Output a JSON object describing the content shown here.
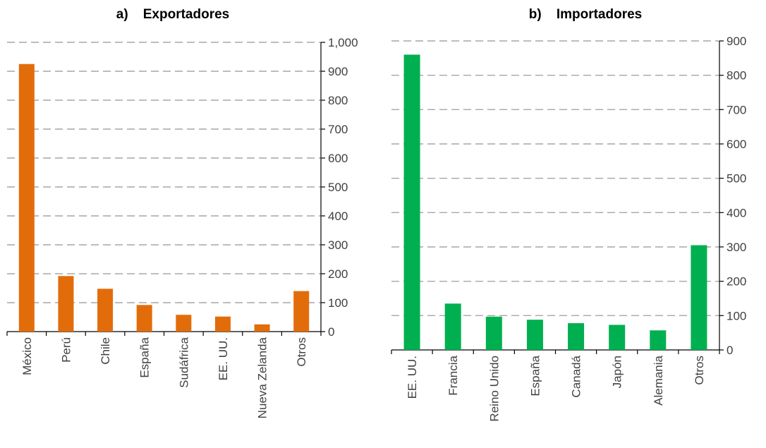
{
  "chart_data": [
    {
      "type": "bar",
      "title": "a)    Exportadores",
      "categories": [
        "México",
        "Perú",
        "Chile",
        "España",
        "Sudáfrica",
        "EE. UU.",
        "Nueva Zelanda",
        "Otros"
      ],
      "values": [
        925,
        192,
        148,
        92,
        58,
        52,
        25,
        140
      ],
      "ylim": [
        0,
        1000
      ],
      "yticks": [
        "0",
        "100",
        "200",
        "300",
        "400",
        "500",
        "600",
        "700",
        "800",
        "900",
        "1,000"
      ],
      "grid": true,
      "y_axis_side": "right",
      "color": "#e36c0a"
    },
    {
      "type": "bar",
      "title": "b)    Importadores",
      "categories": [
        "EE. UU.",
        "Francia",
        "Reino Unido",
        "España",
        "Canadá",
        "Japón",
        "Alemania",
        "Otros"
      ],
      "values": [
        860,
        135,
        97,
        88,
        78,
        73,
        57,
        305
      ],
      "ylim": [
        0,
        900
      ],
      "yticks": [
        "0",
        "100",
        "200",
        "300",
        "400",
        "500",
        "600",
        "700",
        "800",
        "900"
      ],
      "grid": true,
      "y_axis_side": "right",
      "color": "#00b050"
    }
  ]
}
